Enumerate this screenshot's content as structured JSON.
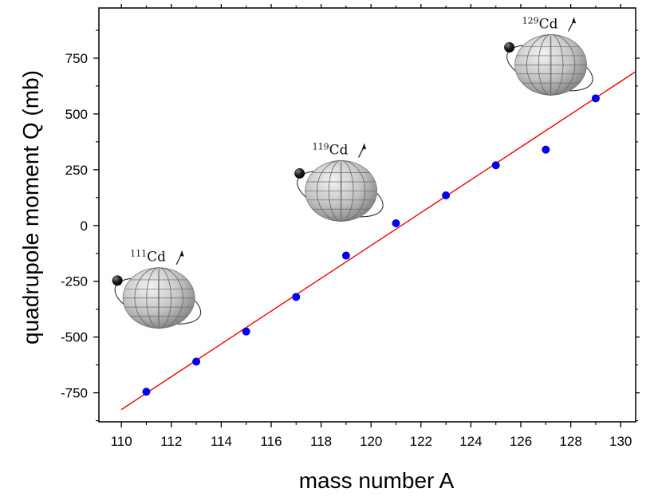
{
  "chart_data": {
    "type": "scatter",
    "xlabel": "mass number A",
    "ylabel": "quadrupole moment Q (mb)",
    "xlim": [
      109.1,
      130.6
    ],
    "ylim": [
      -880,
      975
    ],
    "x_ticks": [
      110,
      112,
      114,
      116,
      118,
      120,
      122,
      124,
      126,
      128,
      130
    ],
    "y_ticks": [
      -750,
      -500,
      -250,
      0,
      250,
      500,
      750
    ],
    "grid": false,
    "series": [
      {
        "marker": "circle",
        "color": "#0000ee",
        "points": [
          {
            "x": 111,
            "y": -745
          },
          {
            "x": 113,
            "y": -610
          },
          {
            "x": 115,
            "y": -475
          },
          {
            "x": 117,
            "y": -320
          },
          {
            "x": 119,
            "y": -135
          },
          {
            "x": 121,
            "y": 10
          },
          {
            "x": 123,
            "y": 135
          },
          {
            "x": 125,
            "y": 270
          },
          {
            "x": 127,
            "y": 340
          },
          {
            "x": 129,
            "y": 570
          }
        ]
      }
    ],
    "fit_line": {
      "color": "#ee0000",
      "x": [
        110,
        130.6
      ],
      "y": [
        -825,
        690
      ]
    },
    "annotations": [
      {
        "mass": "111",
        "element": "Cd",
        "x": 111.5,
        "y": -325
      },
      {
        "mass": "119",
        "element": "Cd",
        "x": 118.8,
        "y": 155
      },
      {
        "mass": "129",
        "element": "Cd",
        "x": 127.2,
        "y": 720
      }
    ]
  }
}
